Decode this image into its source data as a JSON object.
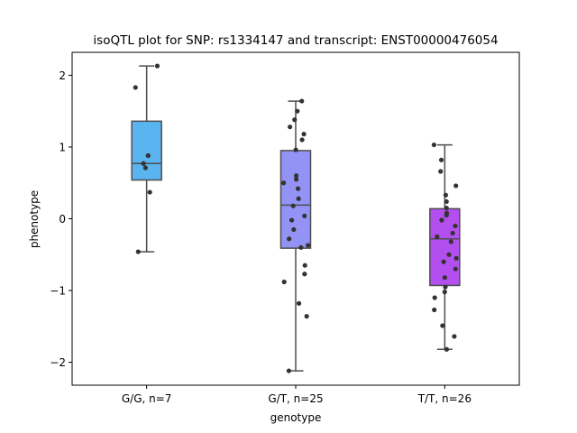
{
  "chart_data": {
    "type": "box",
    "title": "isoQTL plot for SNP: rs1334147 and transcript: ENST00000476054",
    "xlabel": "genotype",
    "ylabel": "phenotype",
    "ylim": [
      -2.32,
      2.32
    ],
    "yticks": [
      {
        "v": -2,
        "label": "−2"
      },
      {
        "v": -1,
        "label": "−1"
      },
      {
        "v": 0,
        "label": "0"
      },
      {
        "v": 1,
        "label": "1"
      },
      {
        "v": 2,
        "label": "2"
      }
    ],
    "categories": [
      "G/G, n=7",
      "G/T, n=25",
      "T/T, n=26"
    ],
    "groups": [
      {
        "category": "G/G, n=7",
        "color": "#5AB4F0",
        "box": {
          "whisker_low": -0.46,
          "q1": 0.54,
          "median": 0.77,
          "q3": 1.36,
          "whisker_high": 2.13
        },
        "points": [
          2.13,
          1.83,
          0.88,
          0.77,
          0.71,
          0.37,
          -0.46
        ]
      },
      {
        "category": "G/T, n=25",
        "color": "#9393F5",
        "box": {
          "whisker_low": -2.12,
          "q1": -0.41,
          "median": 0.19,
          "q3": 0.95,
          "whisker_high": 1.64
        },
        "points": [
          1.64,
          1.5,
          1.38,
          1.28,
          1.18,
          1.1,
          0.96,
          0.6,
          0.55,
          0.5,
          0.42,
          0.28,
          0.18,
          0.04,
          -0.02,
          -0.15,
          -0.28,
          -0.37,
          -0.4,
          -0.65,
          -0.77,
          -0.88,
          -1.18,
          -1.36,
          -2.12
        ]
      },
      {
        "category": "T/T, n=26",
        "color": "#B44FEF",
        "box": {
          "whisker_low": -1.82,
          "q1": -0.93,
          "median": -0.28,
          "q3": 0.14,
          "whisker_high": 1.03
        },
        "points": [
          1.03,
          0.82,
          0.66,
          0.46,
          0.33,
          0.24,
          0.15,
          0.08,
          0.05,
          -0.02,
          -0.1,
          -0.2,
          -0.25,
          -0.32,
          -0.5,
          -0.55,
          -0.6,
          -0.7,
          -0.82,
          -0.95,
          -1.02,
          -1.1,
          -1.27,
          -1.49,
          -1.64,
          -1.82
        ]
      }
    ],
    "grid": false,
    "legend": "none"
  }
}
